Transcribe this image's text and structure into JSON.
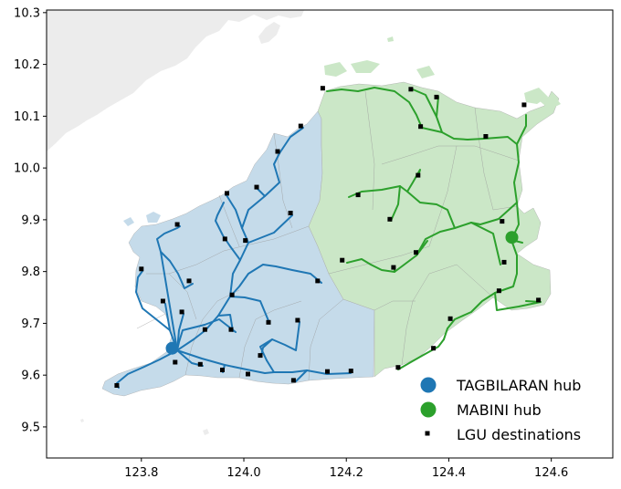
{
  "chart_data": {
    "type": "map",
    "title": "",
    "xlabel": "",
    "ylabel": "",
    "xlim": [
      123.615,
      124.72
    ],
    "ylim": [
      9.44,
      10.305
    ],
    "x_ticks": [
      "123.8",
      "124.0",
      "124.2",
      "124.4",
      "124.6"
    ],
    "y_ticks": [
      "9.5",
      "9.6",
      "9.7",
      "9.8",
      "9.9",
      "10.0",
      "10.1",
      "10.2",
      "10.3"
    ],
    "grid": false,
    "legend_position": "bottom-right",
    "hubs": [
      {
        "name": "TAGBILARAN hub",
        "lon": 123.86,
        "lat": 9.652,
        "color": "#1f77b4"
      },
      {
        "name": "MABINI hub",
        "lon": 124.523,
        "lat": 9.866,
        "color": "#2ca02c"
      }
    ],
    "lgu_destinations_label": "LGU destinations",
    "lgu_destinations": [
      [
        123.752,
        9.58
      ],
      [
        123.8,
        9.805
      ],
      [
        123.842,
        9.743
      ],
      [
        123.866,
        9.625
      ],
      [
        123.87,
        9.891
      ],
      [
        123.879,
        9.722
      ],
      [
        123.893,
        9.782
      ],
      [
        123.915,
        9.621
      ],
      [
        123.924,
        9.688
      ],
      [
        123.958,
        9.61
      ],
      [
        123.963,
        9.863
      ],
      [
        123.967,
        9.951
      ],
      [
        123.975,
        9.688
      ],
      [
        123.977,
        9.755
      ],
      [
        124.003,
        9.86
      ],
      [
        124.008,
        9.602
      ],
      [
        124.025,
        9.963
      ],
      [
        124.032,
        9.638
      ],
      [
        124.048,
        9.702
      ],
      [
        124.066,
        10.032
      ],
      [
        124.091,
        9.913
      ],
      [
        124.097,
        9.59
      ],
      [
        124.105,
        9.706
      ],
      [
        124.111,
        10.081
      ],
      [
        124.144,
        9.782
      ],
      [
        124.154,
        10.154
      ],
      [
        124.163,
        9.607
      ],
      [
        124.192,
        9.822
      ],
      [
        124.209,
        9.608
      ],
      [
        124.223,
        9.948
      ],
      [
        124.285,
        9.901
      ],
      [
        124.292,
        9.808
      ],
      [
        124.301,
        9.615
      ],
      [
        124.326,
        10.152
      ],
      [
        124.336,
        9.837
      ],
      [
        124.34,
        9.986
      ],
      [
        124.345,
        10.08
      ],
      [
        124.37,
        9.652
      ],
      [
        124.376,
        10.137
      ],
      [
        124.403,
        9.709
      ],
      [
        124.472,
        10.061
      ],
      [
        124.498,
        9.763
      ],
      [
        124.504,
        9.897
      ],
      [
        124.508,
        9.818
      ],
      [
        124.547,
        10.122
      ],
      [
        124.575,
        9.745
      ]
    ],
    "colors": {
      "tagbilaran_region": "#c5dbea",
      "mabini_region": "#cbe7c7",
      "background_land": "#ececec",
      "tagbilaran_route": "#1f77b4",
      "mabini_route": "#2ca02c",
      "destination_marker": "#000000"
    }
  },
  "legend": {
    "items": [
      {
        "label": "TAGBILARAN hub",
        "symbol": "circle",
        "color": "#1f77b4"
      },
      {
        "label": "MABINI hub",
        "symbol": "circle",
        "color": "#2ca02c"
      },
      {
        "label": "LGU destinations",
        "symbol": "square",
        "color": "#000000"
      }
    ]
  }
}
